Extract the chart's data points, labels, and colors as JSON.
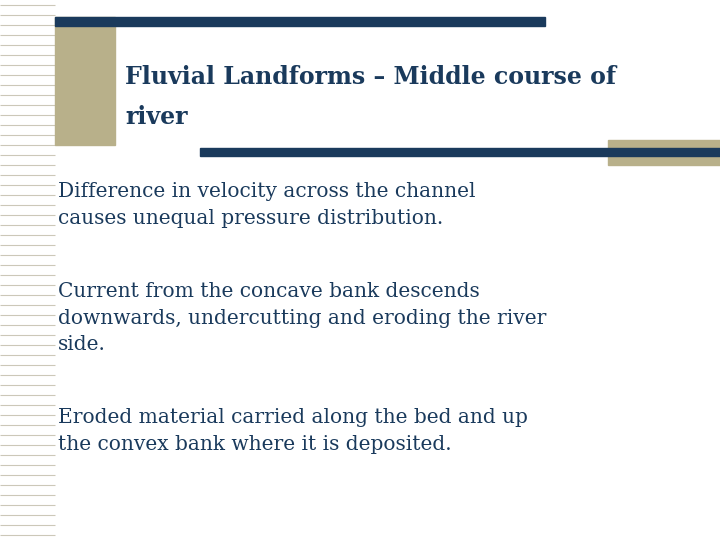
{
  "title_line1": "Fluvial Landforms – Middle course of",
  "title_line2": "river",
  "bullet1": "Difference in velocity across the channel\ncauses unequal pressure distribution.",
  "bullet2": "Current from the concave bank descends\ndownwards, undercutting and eroding the river\nside.",
  "bullet3": "Eroded material carried along the bed and up\nthe convex bank where it is deposited.",
  "background_color": "#ffffff",
  "title_color": "#1a3a5c",
  "text_color": "#1a3a5c",
  "accent_color": "#b8b08a",
  "line_color": "#1a3a5c",
  "title_fontsize": 17,
  "body_fontsize": 14.5,
  "stripe_color": "#dedad0",
  "stripe_line_color": "#ccc8b8"
}
